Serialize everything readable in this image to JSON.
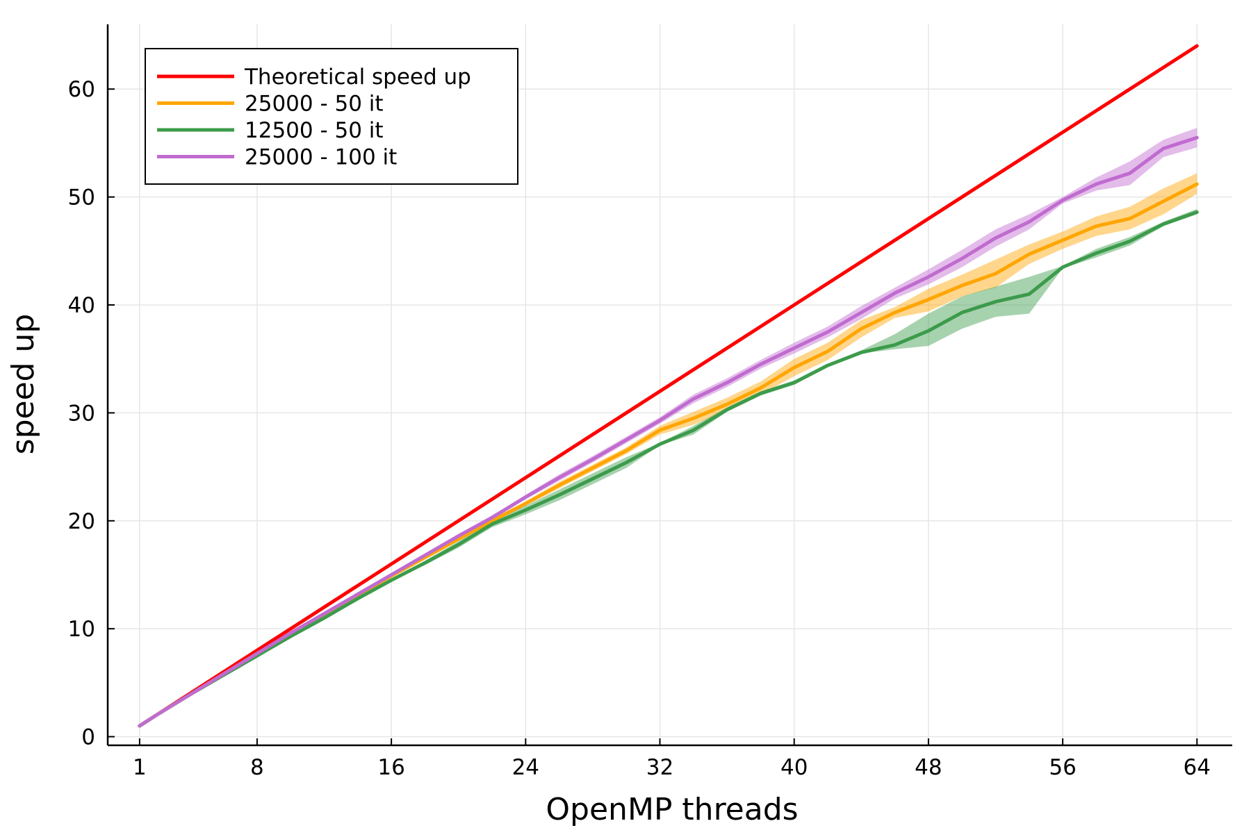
{
  "chart_data": {
    "type": "line",
    "xlabel": "OpenMP threads",
    "ylabel": "speed up",
    "xlim": [
      -0.9,
      66.1
    ],
    "ylim": [
      -0.8,
      66.0
    ],
    "xticks": [
      1,
      8,
      16,
      24,
      32,
      40,
      48,
      56,
      64
    ],
    "yticks": [
      0,
      10,
      20,
      30,
      40,
      50,
      60
    ],
    "grid": true,
    "legend_position": "top-left",
    "colors": {
      "grid": "#e6e6e6",
      "axis": "#000000"
    },
    "series": [
      {
        "name": "Theoretical speed up",
        "color": "#ff0000",
        "x": [
          1,
          64
        ],
        "y": [
          1,
          64
        ]
      },
      {
        "name": "25000 - 50 it",
        "color": "#ffa500",
        "x": [
          1,
          2,
          4,
          6,
          8,
          10,
          12,
          14,
          16,
          18,
          20,
          22,
          24,
          26,
          28,
          30,
          32,
          34,
          36,
          38,
          40,
          42,
          44,
          46,
          48,
          50,
          52,
          54,
          56,
          58,
          60,
          62,
          64
        ],
        "y": [
          1,
          2.0,
          3.9,
          5.8,
          7.7,
          9.5,
          11.3,
          13.1,
          14.9,
          16.6,
          18.3,
          20.0,
          21.6,
          23.3,
          24.9,
          26.5,
          28.4,
          29.5,
          30.8,
          32.3,
          34.2,
          35.7,
          37.8,
          39.3,
          40.5,
          41.8,
          42.9,
          44.7,
          46.0,
          47.3,
          48.0,
          49.6,
          51.2
        ],
        "band_lower": [
          1,
          2.0,
          3.8,
          5.7,
          7.6,
          9.4,
          11.2,
          13.0,
          14.8,
          16.5,
          18.2,
          19.8,
          21.4,
          23.0,
          24.6,
          26.2,
          28.0,
          28.9,
          30.2,
          31.7,
          33.4,
          34.9,
          37.0,
          38.8,
          39.4,
          40.8,
          41.6,
          43.8,
          45.2,
          46.4,
          47.0,
          48.4,
          50.3
        ],
        "band_upper": [
          1,
          2.1,
          4.0,
          5.9,
          7.8,
          9.6,
          11.4,
          13.2,
          15.0,
          16.7,
          18.4,
          20.2,
          21.8,
          23.6,
          25.2,
          26.8,
          28.8,
          30.1,
          31.4,
          32.9,
          35.0,
          36.5,
          38.6,
          39.8,
          41.5,
          42.8,
          44.2,
          45.6,
          46.8,
          48.2,
          49.1,
          50.8,
          52.2
        ]
      },
      {
        "name": "12500 - 50 it",
        "color": "#3c9b4b",
        "x": [
          1,
          2,
          4,
          6,
          8,
          10,
          12,
          14,
          16,
          18,
          20,
          22,
          24,
          26,
          28,
          30,
          32,
          34,
          36,
          38,
          40,
          42,
          44,
          46,
          48,
          50,
          52,
          54,
          56,
          58,
          60,
          62,
          64
        ],
        "y": [
          1,
          2.0,
          3.9,
          5.7,
          7.5,
          9.3,
          11.0,
          12.8,
          14.5,
          16.1,
          17.8,
          19.7,
          21.0,
          22.4,
          23.9,
          25.4,
          27.1,
          28.4,
          30.3,
          31.8,
          32.8,
          34.4,
          35.6,
          36.3,
          37.6,
          39.3,
          40.3,
          41.0,
          43.5,
          44.8,
          45.9,
          47.5,
          48.6
        ],
        "band_lower": [
          1,
          1.9,
          3.8,
          5.6,
          7.4,
          9.2,
          10.9,
          12.7,
          14.4,
          15.9,
          17.5,
          19.4,
          20.6,
          21.9,
          23.4,
          24.9,
          27.0,
          28.0,
          30.1,
          31.6,
          32.6,
          34.3,
          35.5,
          35.9,
          36.2,
          37.8,
          38.9,
          39.2,
          43.4,
          44.4,
          45.5,
          47.3,
          48.4
        ],
        "band_upper": [
          1,
          2.1,
          4.0,
          5.8,
          7.6,
          9.4,
          11.1,
          12.9,
          14.6,
          16.3,
          18.1,
          20.0,
          21.4,
          22.9,
          24.4,
          25.9,
          27.2,
          28.8,
          30.5,
          32.0,
          33.0,
          34.5,
          35.8,
          37.3,
          39.2,
          40.8,
          41.7,
          42.6,
          43.6,
          45.2,
          46.3,
          47.7,
          48.9
        ]
      },
      {
        "name": "25000 - 100 it",
        "color": "#c06bd0",
        "x": [
          1,
          2,
          4,
          6,
          8,
          10,
          12,
          14,
          16,
          18,
          20,
          22,
          24,
          26,
          28,
          30,
          32,
          34,
          36,
          38,
          40,
          42,
          44,
          46,
          48,
          50,
          52,
          54,
          56,
          58,
          60,
          62,
          64
        ],
        "y": [
          1,
          2.0,
          3.9,
          5.8,
          7.7,
          9.6,
          11.4,
          13.2,
          15.0,
          16.8,
          18.6,
          20.3,
          22.2,
          24.0,
          25.7,
          27.5,
          29.3,
          31.3,
          32.8,
          34.5,
          36.0,
          37.5,
          39.3,
          41.1,
          42.6,
          44.3,
          46.2,
          47.7,
          49.7,
          51.2,
          52.2,
          54.5,
          55.5
        ],
        "band_lower": [
          1,
          2.0,
          3.8,
          5.7,
          7.6,
          9.5,
          11.3,
          13.1,
          14.9,
          16.7,
          18.5,
          20.1,
          22.0,
          23.7,
          25.4,
          27.2,
          29.0,
          30.9,
          32.4,
          34.1,
          35.5,
          37.0,
          38.7,
          40.6,
          41.9,
          43.5,
          45.4,
          47.0,
          49.4,
          50.6,
          51.1,
          53.7,
          54.6
        ],
        "band_upper": [
          1,
          2.1,
          4.0,
          5.9,
          7.8,
          9.7,
          11.5,
          13.3,
          15.1,
          16.9,
          18.7,
          20.5,
          22.4,
          24.3,
          26.0,
          27.8,
          29.6,
          31.7,
          33.2,
          34.9,
          36.5,
          38.0,
          39.9,
          41.6,
          43.3,
          45.1,
          47.0,
          48.4,
          50.0,
          51.8,
          53.3,
          55.3,
          56.4
        ]
      }
    ]
  }
}
